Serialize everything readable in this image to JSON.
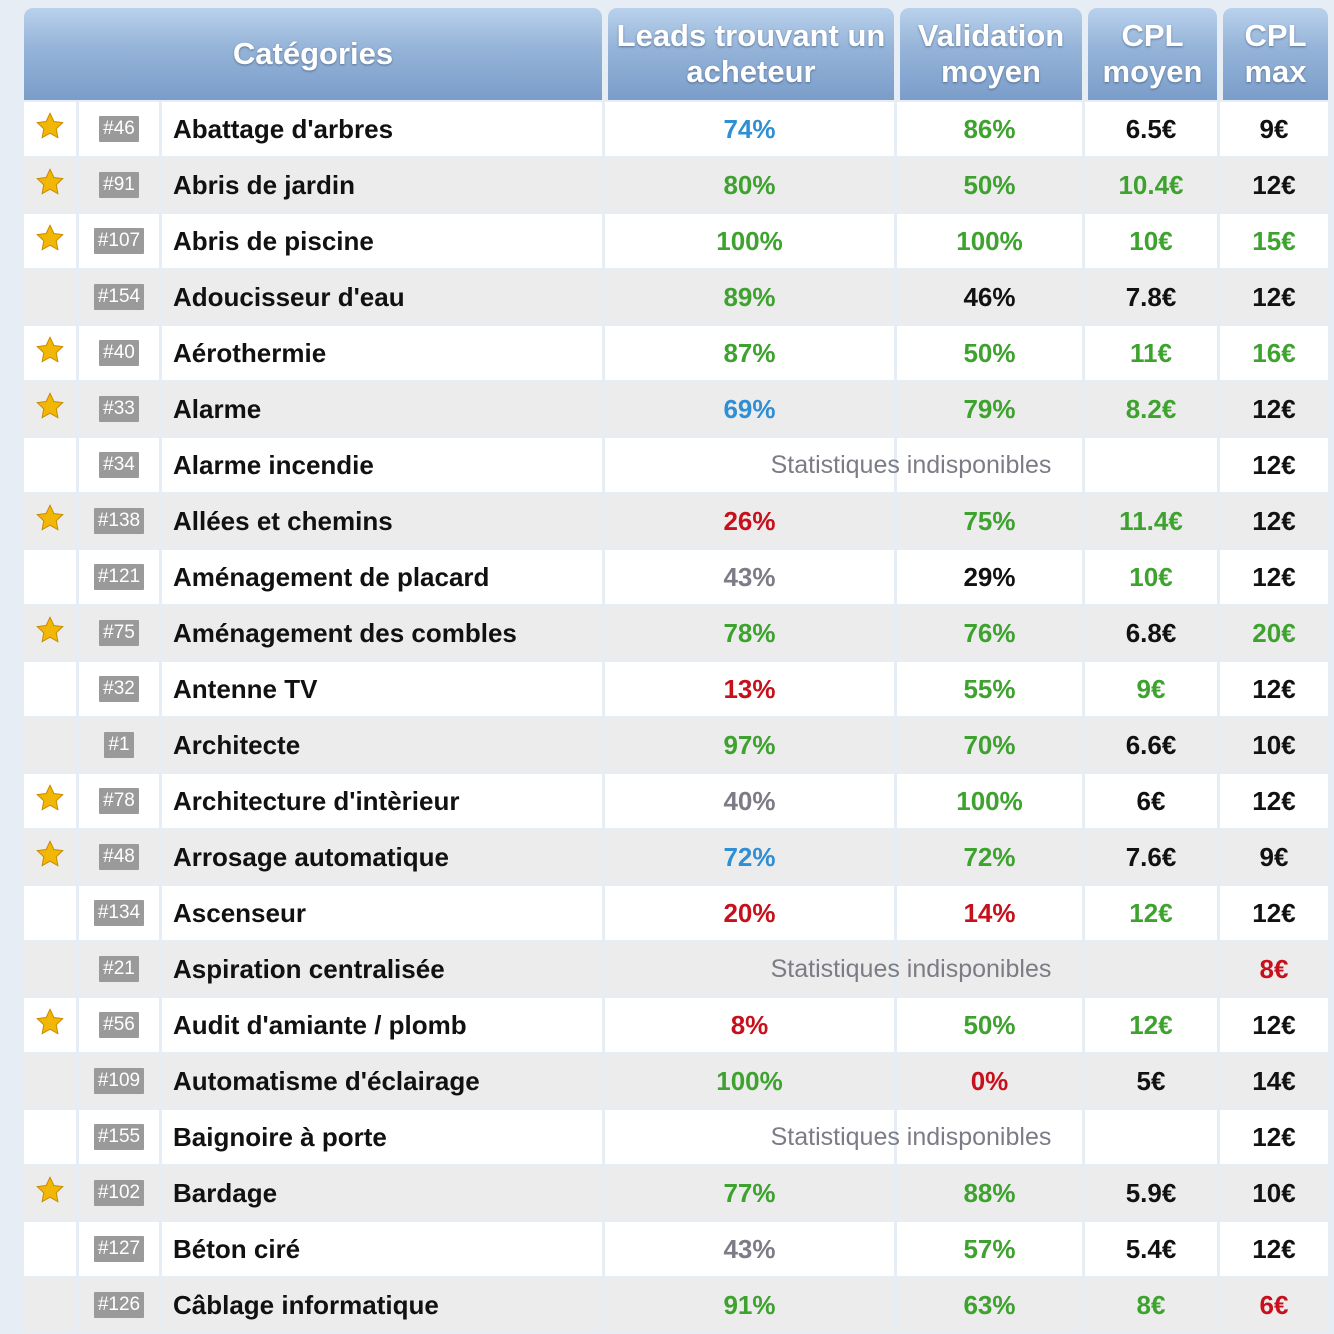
{
  "colors": {
    "green": "#3ea22e",
    "blue": "#2f8fd4",
    "red": "#c8101c",
    "gray": "#7c7c86",
    "black": "#111111",
    "star": "#f2b705"
  },
  "headers": {
    "categories": "Catégories",
    "leads": "Leads trouvant un acheteur",
    "validation": "Validation moyen",
    "cpl": "CPL moyen",
    "cpl_max": "CPL max"
  },
  "unavailable_text": "Statistiques indisponibles",
  "rows": [
    {
      "star": true,
      "id": "#46",
      "name": "Abattage d'arbres",
      "leads": "74%",
      "leads_color": "blue",
      "validation": "86%",
      "validation_color": "green",
      "cpl": "6.5€",
      "cpl_color": "black",
      "cpl_max": "9€",
      "cpl_max_color": "black"
    },
    {
      "star": true,
      "id": "#91",
      "name": "Abris de jardin",
      "leads": "80%",
      "leads_color": "green",
      "validation": "50%",
      "validation_color": "green",
      "cpl": "10.4€",
      "cpl_color": "green",
      "cpl_max": "12€",
      "cpl_max_color": "black"
    },
    {
      "star": true,
      "id": "#107",
      "name": "Abris de piscine",
      "leads": "100%",
      "leads_color": "green",
      "validation": "100%",
      "validation_color": "green",
      "cpl": "10€",
      "cpl_color": "green",
      "cpl_max": "15€",
      "cpl_max_color": "green"
    },
    {
      "star": false,
      "id": "#154",
      "name": "Adoucisseur d'eau",
      "leads": "89%",
      "leads_color": "green",
      "validation": "46%",
      "validation_color": "black",
      "cpl": "7.8€",
      "cpl_color": "black",
      "cpl_max": "12€",
      "cpl_max_color": "black"
    },
    {
      "star": true,
      "id": "#40",
      "name": "Aérothermie",
      "leads": "87%",
      "leads_color": "green",
      "validation": "50%",
      "validation_color": "green",
      "cpl": "11€",
      "cpl_color": "green",
      "cpl_max": "16€",
      "cpl_max_color": "green"
    },
    {
      "star": true,
      "id": "#33",
      "name": "Alarme",
      "leads": "69%",
      "leads_color": "blue",
      "validation": "79%",
      "validation_color": "green",
      "cpl": "8.2€",
      "cpl_color": "green",
      "cpl_max": "12€",
      "cpl_max_color": "black"
    },
    {
      "star": false,
      "id": "#34",
      "name": "Alarme incendie",
      "unavailable": true,
      "cpl_max": "12€",
      "cpl_max_color": "black"
    },
    {
      "star": true,
      "id": "#138",
      "name": "Allées et chemins",
      "leads": "26%",
      "leads_color": "red",
      "validation": "75%",
      "validation_color": "green",
      "cpl": "11.4€",
      "cpl_color": "green",
      "cpl_max": "12€",
      "cpl_max_color": "black"
    },
    {
      "star": false,
      "id": "#121",
      "name": "Aménagement de placard",
      "leads": "43%",
      "leads_color": "gray",
      "validation": "29%",
      "validation_color": "black",
      "cpl": "10€",
      "cpl_color": "green",
      "cpl_max": "12€",
      "cpl_max_color": "black"
    },
    {
      "star": true,
      "id": "#75",
      "name": "Aménagement des combles",
      "leads": "78%",
      "leads_color": "green",
      "validation": "76%",
      "validation_color": "green",
      "cpl": "6.8€",
      "cpl_color": "black",
      "cpl_max": "20€",
      "cpl_max_color": "green"
    },
    {
      "star": false,
      "id": "#32",
      "name": "Antenne TV",
      "leads": "13%",
      "leads_color": "red",
      "validation": "55%",
      "validation_color": "green",
      "cpl": "9€",
      "cpl_color": "green",
      "cpl_max": "12€",
      "cpl_max_color": "black"
    },
    {
      "star": false,
      "id": "#1",
      "name": "Architecte",
      "leads": "97%",
      "leads_color": "green",
      "validation": "70%",
      "validation_color": "green",
      "cpl": "6.6€",
      "cpl_color": "black",
      "cpl_max": "10€",
      "cpl_max_color": "black"
    },
    {
      "star": true,
      "id": "#78",
      "name": "Architecture d'intèrieur",
      "leads": "40%",
      "leads_color": "gray",
      "validation": "100%",
      "validation_color": "green",
      "cpl": "6€",
      "cpl_color": "black",
      "cpl_max": "12€",
      "cpl_max_color": "black"
    },
    {
      "star": true,
      "id": "#48",
      "name": "Arrosage automatique",
      "leads": "72%",
      "leads_color": "blue",
      "validation": "72%",
      "validation_color": "green",
      "cpl": "7.6€",
      "cpl_color": "black",
      "cpl_max": "9€",
      "cpl_max_color": "black"
    },
    {
      "star": false,
      "id": "#134",
      "name": "Ascenseur",
      "leads": "20%",
      "leads_color": "red",
      "validation": "14%",
      "validation_color": "red",
      "cpl": "12€",
      "cpl_color": "green",
      "cpl_max": "12€",
      "cpl_max_color": "black"
    },
    {
      "star": false,
      "id": "#21",
      "name": "Aspiration centralisée",
      "unavailable": true,
      "cpl_max": "8€",
      "cpl_max_color": "red"
    },
    {
      "star": true,
      "id": "#56",
      "name": "Audit d'amiante / plomb",
      "leads": "8%",
      "leads_color": "red",
      "validation": "50%",
      "validation_color": "green",
      "cpl": "12€",
      "cpl_color": "green",
      "cpl_max": "12€",
      "cpl_max_color": "black"
    },
    {
      "star": false,
      "id": "#109",
      "name": "Automatisme d'éclairage",
      "leads": "100%",
      "leads_color": "green",
      "validation": "0%",
      "validation_color": "red",
      "cpl": "5€",
      "cpl_color": "black",
      "cpl_max": "14€",
      "cpl_max_color": "black"
    },
    {
      "star": false,
      "id": "#155",
      "name": "Baignoire à porte",
      "unavailable": true,
      "cpl_max": "12€",
      "cpl_max_color": "black"
    },
    {
      "star": true,
      "id": "#102",
      "name": "Bardage",
      "leads": "77%",
      "leads_color": "green",
      "validation": "88%",
      "validation_color": "green",
      "cpl": "5.9€",
      "cpl_color": "black",
      "cpl_max": "10€",
      "cpl_max_color": "black"
    },
    {
      "star": false,
      "id": "#127",
      "name": "Béton ciré",
      "leads": "43%",
      "leads_color": "gray",
      "validation": "57%",
      "validation_color": "green",
      "cpl": "5.4€",
      "cpl_color": "black",
      "cpl_max": "12€",
      "cpl_max_color": "black"
    },
    {
      "star": false,
      "id": "#126",
      "name": "Câblage informatique",
      "leads": "91%",
      "leads_color": "green",
      "validation": "63%",
      "validation_color": "green",
      "cpl": "8€",
      "cpl_color": "green",
      "cpl_max": "6€",
      "cpl_max_color": "red"
    }
  ]
}
